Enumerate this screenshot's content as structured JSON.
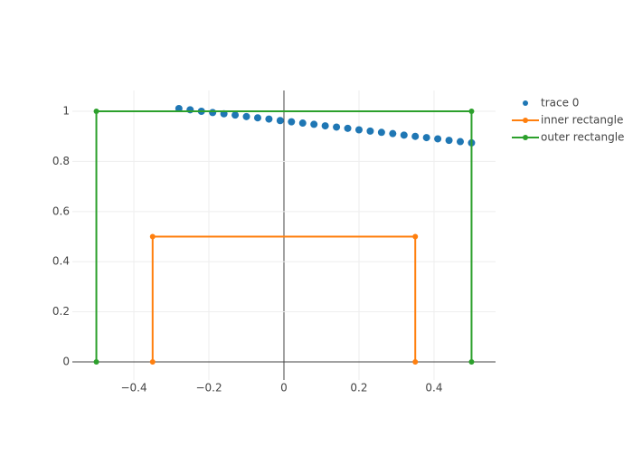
{
  "chart_data": {
    "type": "line",
    "series": [
      {
        "name": "trace 0",
        "mode": "markers",
        "color": "#1f77b4",
        "x": [
          -0.28,
          -0.25,
          -0.22,
          -0.19,
          -0.16,
          -0.13,
          -0.1,
          -0.07,
          -0.04,
          -0.01,
          0.02,
          0.05,
          0.08,
          0.11,
          0.14,
          0.17,
          0.2,
          0.23,
          0.26,
          0.29,
          0.32,
          0.35,
          0.38,
          0.41,
          0.44,
          0.47,
          0.5
        ],
        "values": [
          1.011,
          1.006,
          1.0,
          0.995,
          0.99,
          0.985,
          0.979,
          0.974,
          0.969,
          0.963,
          0.958,
          0.953,
          0.948,
          0.942,
          0.937,
          0.932,
          0.926,
          0.921,
          0.916,
          0.911,
          0.905,
          0.9,
          0.895,
          0.89,
          0.884,
          0.879,
          0.874
        ]
      },
      {
        "name": "inner rectangle",
        "mode": "lines+markers",
        "color": "#ff7f0e",
        "x": [
          -0.35,
          -0.35,
          0.35,
          0.35
        ],
        "values": [
          0,
          0.5,
          0.5,
          0
        ]
      },
      {
        "name": "outer rectangle",
        "mode": "lines+markers",
        "color": "#2ca02c",
        "x": [
          -0.5,
          -0.5,
          0.5,
          0.5
        ],
        "values": [
          0,
          1,
          1,
          0
        ]
      }
    ],
    "xlim": [
      -0.564,
      0.564
    ],
    "ylim": [
      -0.072,
      1.083
    ],
    "xticks": [
      {
        "value": -0.4,
        "label": "−0.4"
      },
      {
        "value": -0.2,
        "label": "−0.2"
      },
      0,
      0.2,
      0.4
    ],
    "yticks": [
      0,
      0.2,
      0.4,
      0.6,
      0.8,
      1
    ],
    "grid": true,
    "legend": "right"
  }
}
